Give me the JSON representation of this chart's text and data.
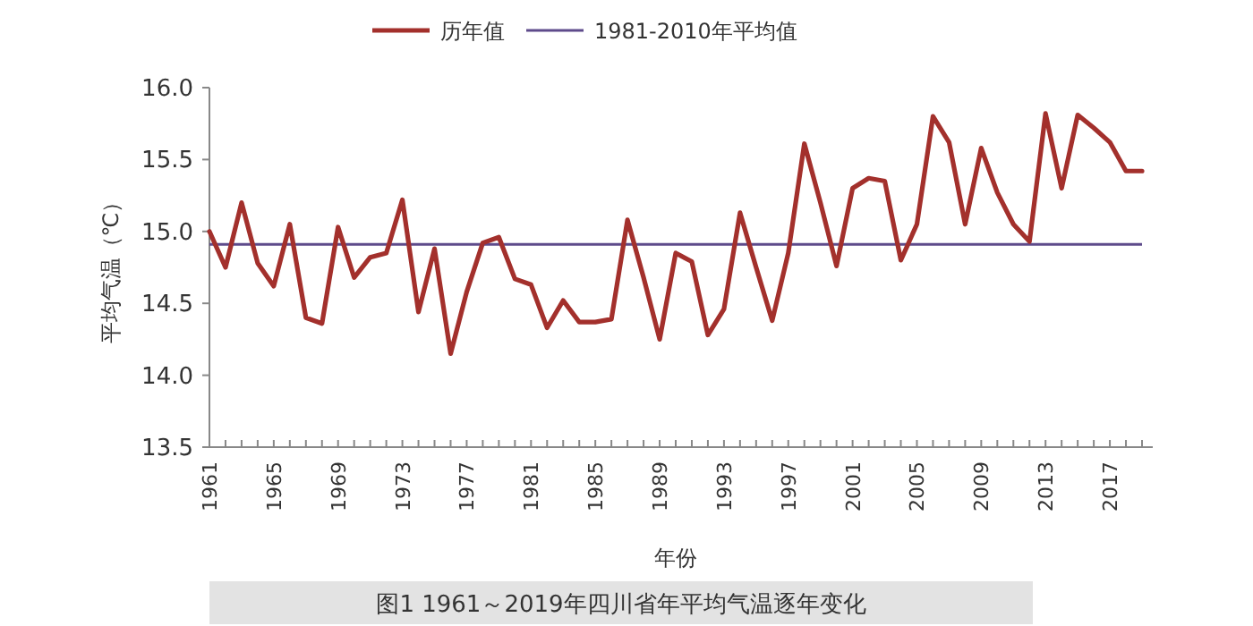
{
  "chart_data": {
    "type": "line",
    "xlabel": "年份",
    "ylabel": "平均气温（℃）",
    "ylim": [
      13.5,
      16.0
    ],
    "yticks": [
      {
        "value": 13.5,
        "label": "13.5"
      },
      {
        "value": 14.0,
        "label": "14.0"
      },
      {
        "value": 14.5,
        "label": "14.5"
      },
      {
        "value": 15.0,
        "label": "15.0"
      },
      {
        "value": 15.5,
        "label": "15.5"
      },
      {
        "value": 16.0,
        "label": "16.0"
      }
    ],
    "grid": false,
    "legend": "top",
    "marker": "none",
    "line_style": "solid",
    "categories": [
      "1961",
      null,
      null,
      null,
      "1965",
      null,
      null,
      null,
      "1969",
      null,
      null,
      null,
      "1973",
      null,
      null,
      null,
      "1977",
      null,
      null,
      null,
      "1981",
      null,
      null,
      null,
      "1985",
      null,
      null,
      null,
      "1989",
      null,
      null,
      null,
      "1993",
      null,
      null,
      null,
      "1997",
      null,
      null,
      null,
      "2001",
      null,
      null,
      null,
      "2005",
      null,
      null,
      null,
      "2009",
      null,
      null,
      null,
      "2013",
      null,
      null,
      null,
      "2017",
      null,
      null
    ],
    "series": [
      {
        "name": "历年值",
        "color": "#a3302c",
        "values": [
          15.0,
          14.75,
          15.2,
          14.78,
          14.62,
          15.05,
          14.4,
          14.36,
          15.03,
          14.68,
          14.82,
          14.85,
          15.22,
          14.44,
          14.88,
          14.15,
          14.58,
          14.92,
          14.96,
          14.67,
          14.63,
          14.33,
          14.52,
          14.37,
          14.37,
          14.39,
          15.08,
          14.68,
          14.25,
          14.85,
          14.79,
          14.28,
          14.46,
          15.13,
          14.75,
          14.38,
          14.85,
          15.61,
          15.2,
          14.76,
          15.3,
          15.37,
          15.35,
          14.8,
          15.05,
          15.8,
          15.62,
          15.05,
          15.58,
          15.27,
          15.05,
          14.93,
          15.82,
          15.3,
          15.81,
          15.72,
          15.62,
          15.42,
          15.42
        ]
      }
    ],
    "ref_lines": [
      {
        "axis": "y",
        "value": 14.91,
        "label": "1981-2010年平均值",
        "color": "#5e4b8b",
        "line_style": "solid"
      }
    ],
    "annotations": [
      "图1  1961～2019年四川省年平均气温逐年变化"
    ]
  }
}
